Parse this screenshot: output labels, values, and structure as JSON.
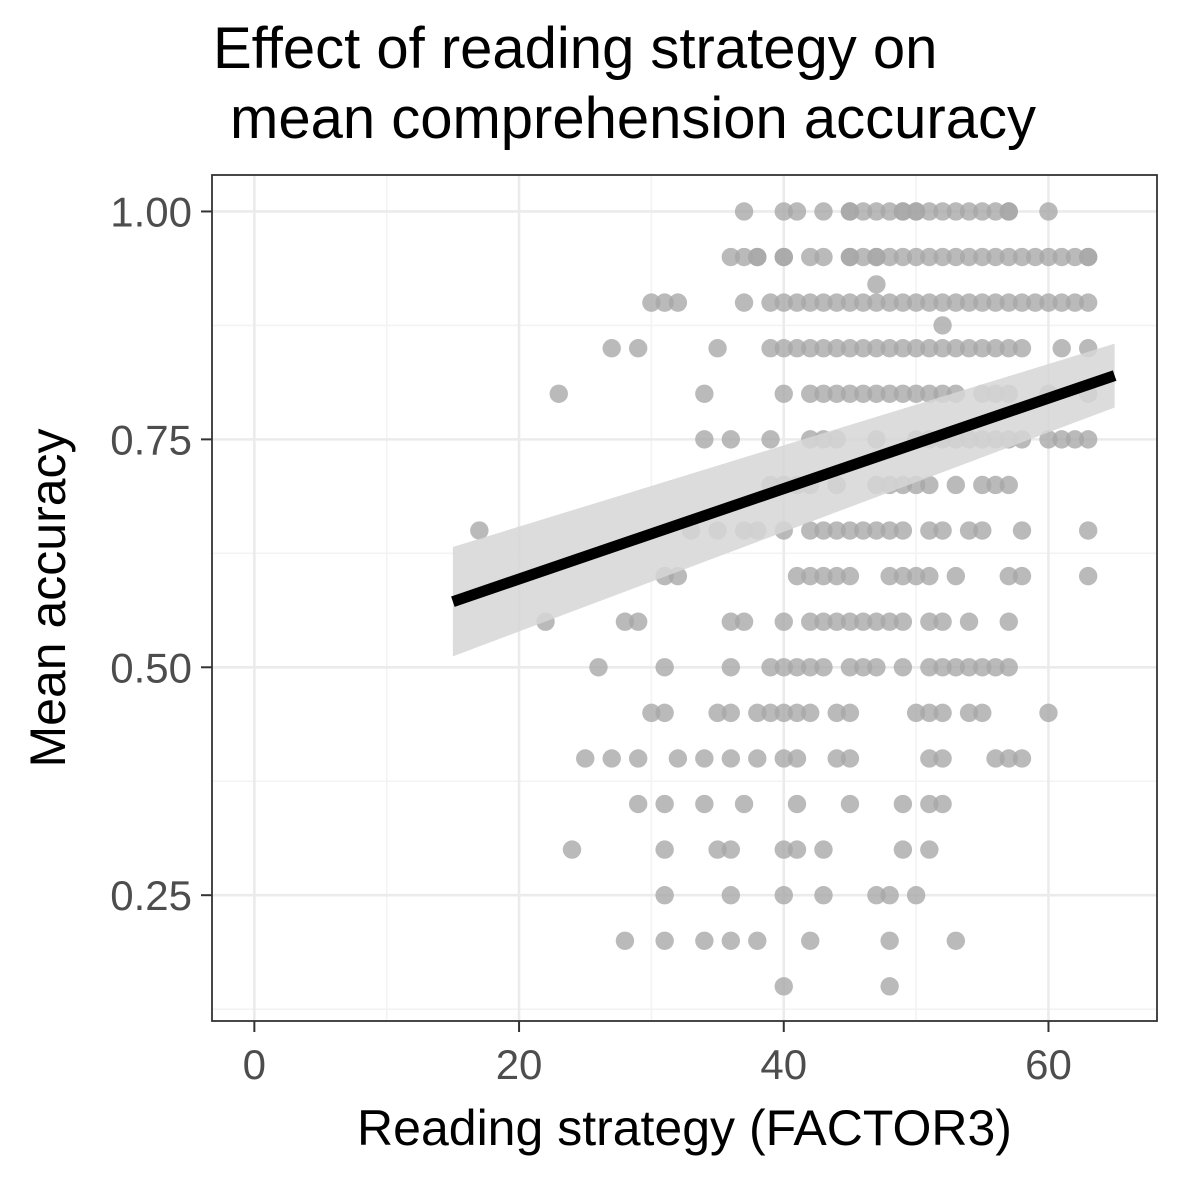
{
  "chart_data": {
    "type": "scatter",
    "title_lines": [
      "Effect of reading strategy on",
      "mean comprehension accuracy"
    ],
    "xlabel": "Reading strategy (FACTOR3)",
    "ylabel": "Mean accuracy",
    "xlim": [
      -3.2,
      68.2
    ],
    "ylim": [
      0.112,
      1.04
    ],
    "x_ticks": [
      0,
      20,
      40,
      60
    ],
    "x_tick_labels": [
      "0",
      "20",
      "40",
      "60"
    ],
    "y_ticks": [
      0.25,
      0.5,
      0.75,
      1.0
    ],
    "y_tick_labels": [
      "0.25",
      "0.50",
      "0.75",
      "1.00"
    ],
    "grid": true,
    "theme": "bw",
    "colors": {
      "points": "#a6a6a6",
      "line": "#000000",
      "ribbon": "#d6d6d6",
      "grid_major": "#ebebeb",
      "grid_minor": "#f3f3f3",
      "panel_border": "#333333",
      "tick_text": "#4d4d4d"
    },
    "fit": {
      "type": "linear",
      "x_range": [
        15,
        65
      ],
      "y_at_start": 0.572,
      "y_at_end": 0.82,
      "ci_at_start": [
        0.512,
        0.632
      ],
      "ci_at_end": [
        0.785,
        0.855
      ]
    },
    "points_by_accuracy": [
      {
        "y": 1.0,
        "x": [
          37,
          40,
          41,
          43,
          45,
          45,
          46,
          47,
          48,
          49,
          49,
          50,
          50,
          51,
          52,
          53,
          54,
          55,
          56,
          57,
          57,
          60
        ]
      },
      {
        "y": 0.95,
        "x": [
          36,
          37,
          38,
          38,
          40,
          40,
          42,
          43,
          45,
          45,
          46,
          47,
          47,
          48,
          49,
          50,
          51,
          52,
          53,
          54,
          55,
          56,
          57,
          58,
          59,
          60,
          61,
          62,
          63,
          63
        ]
      },
      {
        "y": 0.92,
        "x": [
          47
        ]
      },
      {
        "y": 0.9,
        "x": [
          30,
          31,
          32,
          37,
          39,
          40,
          41,
          42,
          43,
          44,
          45,
          46,
          47,
          48,
          49,
          50,
          51,
          52,
          53,
          54,
          55,
          56,
          57,
          58,
          59,
          60,
          61,
          62,
          63
        ]
      },
      {
        "y": 0.875,
        "x": [
          52
        ]
      },
      {
        "y": 0.85,
        "x": [
          27,
          29,
          35,
          39,
          40,
          41,
          42,
          43,
          44,
          45,
          46,
          47,
          48,
          49,
          50,
          51,
          52,
          53,
          54,
          55,
          56,
          57,
          58,
          61,
          63
        ]
      },
      {
        "y": 0.8,
        "x": [
          23,
          34,
          40,
          42,
          43,
          44,
          45,
          46,
          47,
          48,
          49,
          50,
          51,
          52,
          53,
          55,
          56,
          57,
          60,
          63
        ]
      },
      {
        "y": 0.75,
        "x": [
          34,
          36,
          39,
          42,
          43,
          44,
          47,
          50,
          51,
          52,
          53,
          54,
          55,
          56,
          57,
          58,
          60,
          61,
          62,
          63
        ]
      },
      {
        "y": 0.7,
        "x": [
          39,
          40,
          41,
          42,
          44,
          47,
          48,
          49,
          50,
          51,
          53,
          55,
          56,
          57
        ]
      },
      {
        "y": 0.65,
        "x": [
          17,
          33,
          35,
          37,
          38,
          40,
          42,
          43,
          44,
          45,
          46,
          47,
          48,
          49,
          51,
          52,
          54,
          55,
          58,
          63
        ]
      },
      {
        "y": 0.6,
        "x": [
          31,
          32,
          41,
          42,
          43,
          44,
          45,
          48,
          49,
          50,
          51,
          53,
          57,
          58,
          63
        ]
      },
      {
        "y": 0.55,
        "x": [
          22,
          28,
          29,
          36,
          37,
          40,
          42,
          43,
          44,
          45,
          46,
          47,
          48,
          49,
          51,
          52,
          54,
          57
        ]
      },
      {
        "y": 0.5,
        "x": [
          26,
          31,
          36,
          39,
          40,
          41,
          42,
          43,
          45,
          46,
          47,
          49,
          51,
          52,
          53,
          54,
          55,
          56,
          57
        ]
      },
      {
        "y": 0.45,
        "x": [
          30,
          31,
          35,
          36,
          38,
          39,
          40,
          41,
          42,
          44,
          45,
          50,
          51,
          52,
          54,
          55,
          60
        ]
      },
      {
        "y": 0.4,
        "x": [
          25,
          27,
          29,
          32,
          34,
          36,
          38,
          40,
          41,
          44,
          45,
          51,
          52,
          56,
          57,
          58
        ]
      },
      {
        "y": 0.35,
        "x": [
          29,
          31,
          34,
          37,
          41,
          45,
          49,
          51,
          52
        ]
      },
      {
        "y": 0.3,
        "x": [
          24,
          31,
          35,
          36,
          40,
          41,
          43,
          49,
          51
        ]
      },
      {
        "y": 0.25,
        "x": [
          31,
          36,
          40,
          43,
          47,
          48,
          50
        ]
      },
      {
        "y": 0.2,
        "x": [
          28,
          31,
          34,
          36,
          38,
          42,
          48,
          53
        ]
      },
      {
        "y": 0.15,
        "x": [
          40,
          48
        ]
      }
    ]
  }
}
